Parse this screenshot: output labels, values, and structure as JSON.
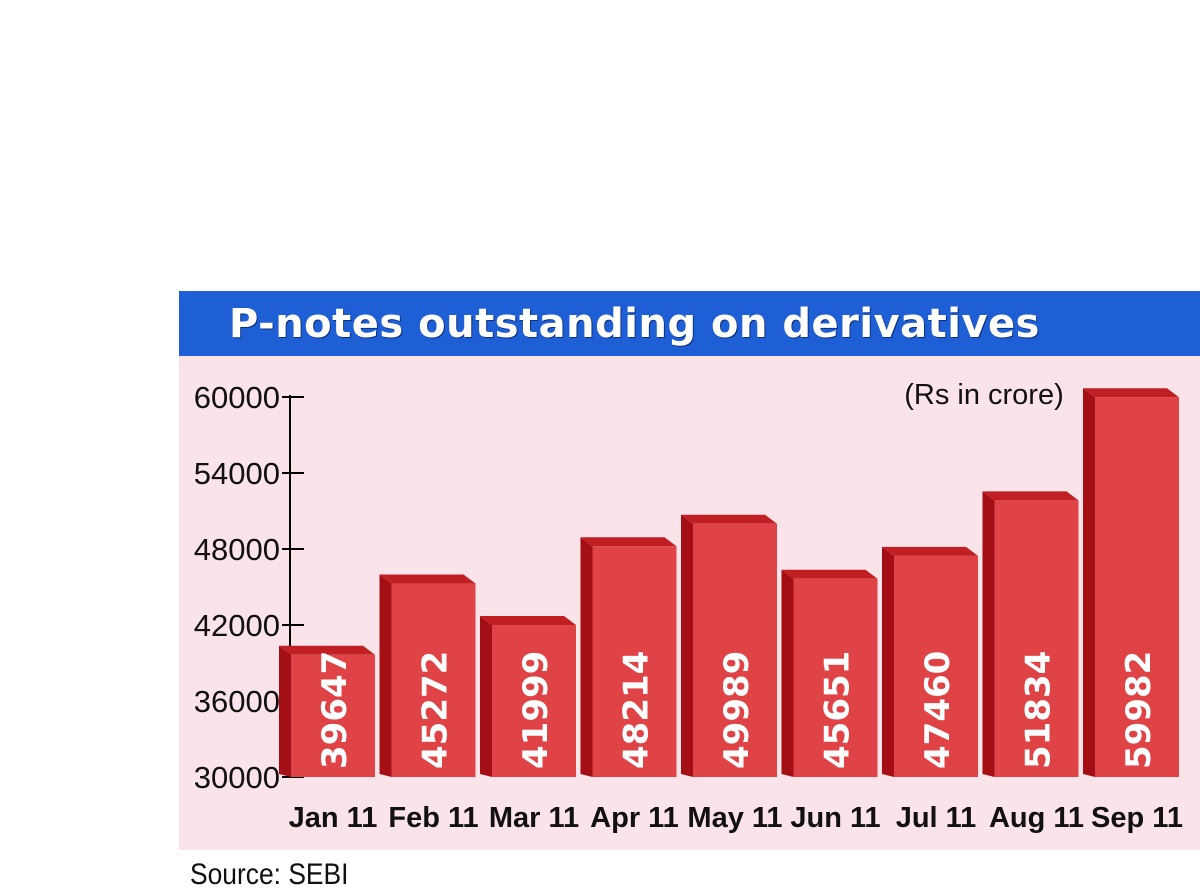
{
  "header": {
    "title": "P-notes outstanding on derivatives"
  },
  "footer": {
    "source": "Source: SEBI"
  },
  "colors": {
    "header_bg": "#1f5fd6",
    "panel_bg": "#fbe3ea",
    "bar_front": "#e04346",
    "bar_dark": "#a30f14",
    "bar_top": "#c01f24"
  },
  "chart_data": {
    "type": "bar",
    "title": "P-notes outstanding on derivatives",
    "unit_note": "(Rs in crore)",
    "categories": [
      "Jan 11",
      "Feb 11",
      "Mar 11",
      "Apr 11",
      "May 11",
      "Jun 11",
      "Jul 11",
      "Aug 11",
      "Sep 11"
    ],
    "values": [
      39647,
      45272,
      41999,
      48214,
      49989,
      45651,
      47460,
      51834,
      59982
    ],
    "data_labels": [
      "39647",
      "45272",
      "41999",
      "48214",
      "49989",
      "45651",
      "47460",
      "51834",
      "59982"
    ],
    "y_ticks": [
      30000,
      36000,
      42000,
      48000,
      54000,
      60000
    ],
    "y_tick_labels": [
      "30000",
      "36000",
      "42000",
      "48000",
      "54000",
      "60000"
    ],
    "ylim": [
      30000,
      60000
    ],
    "grid": false,
    "legend": "none"
  }
}
